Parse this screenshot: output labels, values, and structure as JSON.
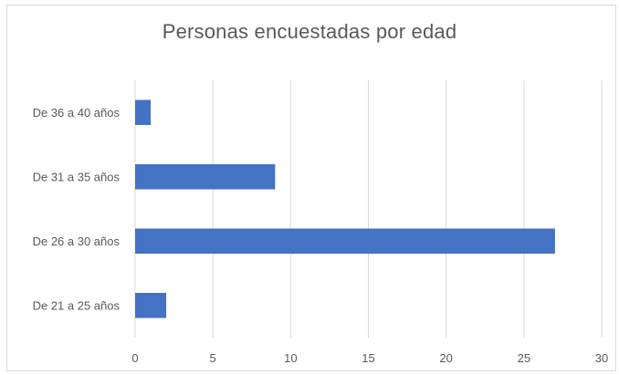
{
  "chart_data": {
    "type": "bar",
    "orientation": "horizontal",
    "title": "Personas encuestadas por edad",
    "categories": [
      "De 21 a 25 años",
      "De 26 a 30 años",
      "De 31 a 35 años",
      "De 36 a 40 años"
    ],
    "values": [
      2,
      27,
      9,
      1
    ],
    "xlim": [
      0,
      30
    ],
    "xticks": [
      "0",
      "5",
      "10",
      "15",
      "20",
      "25",
      "30"
    ],
    "grid": "vertical",
    "legend": "none",
    "bar_color": "#4472c4",
    "grid_color": "#d9d9d9"
  }
}
